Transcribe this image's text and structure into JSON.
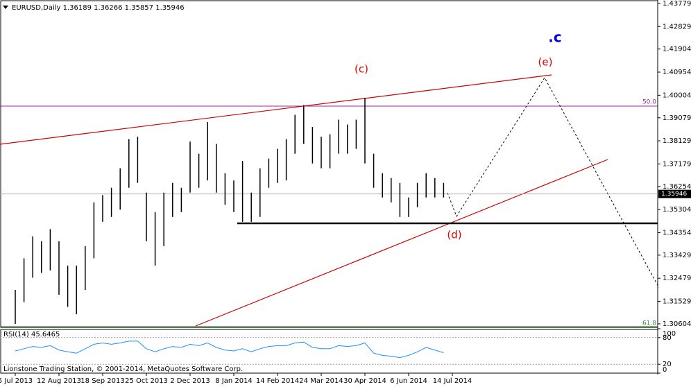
{
  "chart_data": {
    "type": "ohlc",
    "title": "EURUSD,Daily  1.36189 1.36266 1.35857 1.35946",
    "categories": [
      "5 Jul 2013",
      null,
      null,
      null,
      null,
      "12 Aug 2013",
      null,
      null,
      null,
      null,
      "18 Sep 2013",
      null,
      null,
      null,
      null,
      "25 Oct 2013",
      null,
      null,
      null,
      null,
      "2 Dec 2013",
      null,
      null,
      null,
      null,
      "8 Jan 2014",
      null,
      null,
      null,
      null,
      "14 Feb 2014",
      null,
      null,
      null,
      null,
      "24 Mar 2014",
      null,
      null,
      null,
      null,
      "30 Apr 2014",
      null,
      null,
      null,
      null,
      "6 Jun 2014",
      null,
      null,
      null,
      null,
      "14 Jul 2014"
    ],
    "high": [
      1.32,
      1.333,
      1.342,
      1.34,
      1.345,
      1.34,
      1.33,
      1.33,
      1.338,
      1.356,
      1.359,
      1.362,
      1.37,
      1.382,
      1.383,
      1.36,
      1.352,
      1.36,
      1.364,
      1.362,
      1.381,
      1.376,
      1.389,
      1.38,
      1.368,
      1.365,
      1.373,
      1.36,
      1.37,
      1.374,
      1.378,
      1.382,
      1.392,
      1.396,
      1.387,
      1.383,
      1.384,
      1.39,
      1.388,
      1.39,
      1.399,
      1.376,
      1.368,
      1.366,
      1.364,
      1.358,
      1.364,
      1.368,
      1.366,
      1.364,
      null
    ],
    "low": [
      1.306,
      1.315,
      1.325,
      1.327,
      1.328,
      1.318,
      1.313,
      1.31,
      1.32,
      1.333,
      1.348,
      1.35,
      1.353,
      1.362,
      1.364,
      1.34,
      1.33,
      1.338,
      1.35,
      1.352,
      1.36,
      1.362,
      1.365,
      1.36,
      1.355,
      1.352,
      1.348,
      1.348,
      1.35,
      1.362,
      1.364,
      1.365,
      1.376,
      1.38,
      1.372,
      1.37,
      1.37,
      1.376,
      1.376,
      1.378,
      1.372,
      1.362,
      1.358,
      1.356,
      1.35,
      1.35,
      1.354,
      1.358,
      1.358,
      1.358,
      null
    ],
    "color": "#000000",
    "ylim": [
      1.3046,
      1.4392
    ],
    "yticks": [
      1.43779,
      1.42829,
      1.41904,
      1.40954,
      1.40004,
      1.39079,
      1.38129,
      1.37179,
      1.36254,
      1.35304,
      1.34354,
      1.33429,
      1.32479,
      1.31529,
      1.30604
    ],
    "current_price": 1.35946,
    "annotations": [
      ".c",
      "(c)",
      "(e)",
      "(d)",
      "50.0",
      "61.8"
    ],
    "rsi": {
      "title": "RSI(14) 45.6465",
      "values": [
        50,
        55,
        60,
        58,
        62,
        52,
        48,
        45,
        55,
        65,
        68,
        65,
        68,
        72,
        72,
        55,
        48,
        55,
        60,
        58,
        65,
        62,
        68,
        58,
        52,
        50,
        55,
        48,
        55,
        60,
        62,
        62,
        68,
        70,
        58,
        55,
        55,
        62,
        60,
        62,
        68,
        45,
        40,
        38,
        35,
        40,
        48,
        58,
        52,
        46,
        null
      ],
      "color": "#1e90ff",
      "ylim": [
        0,
        100
      ],
      "yticks": [
        100,
        80,
        20,
        0
      ],
      "grid_levels": [
        80,
        20
      ]
    },
    "copyright": "Lionstone Trading Station, © 2001-2014, MetaQuotes Software Corp."
  }
}
